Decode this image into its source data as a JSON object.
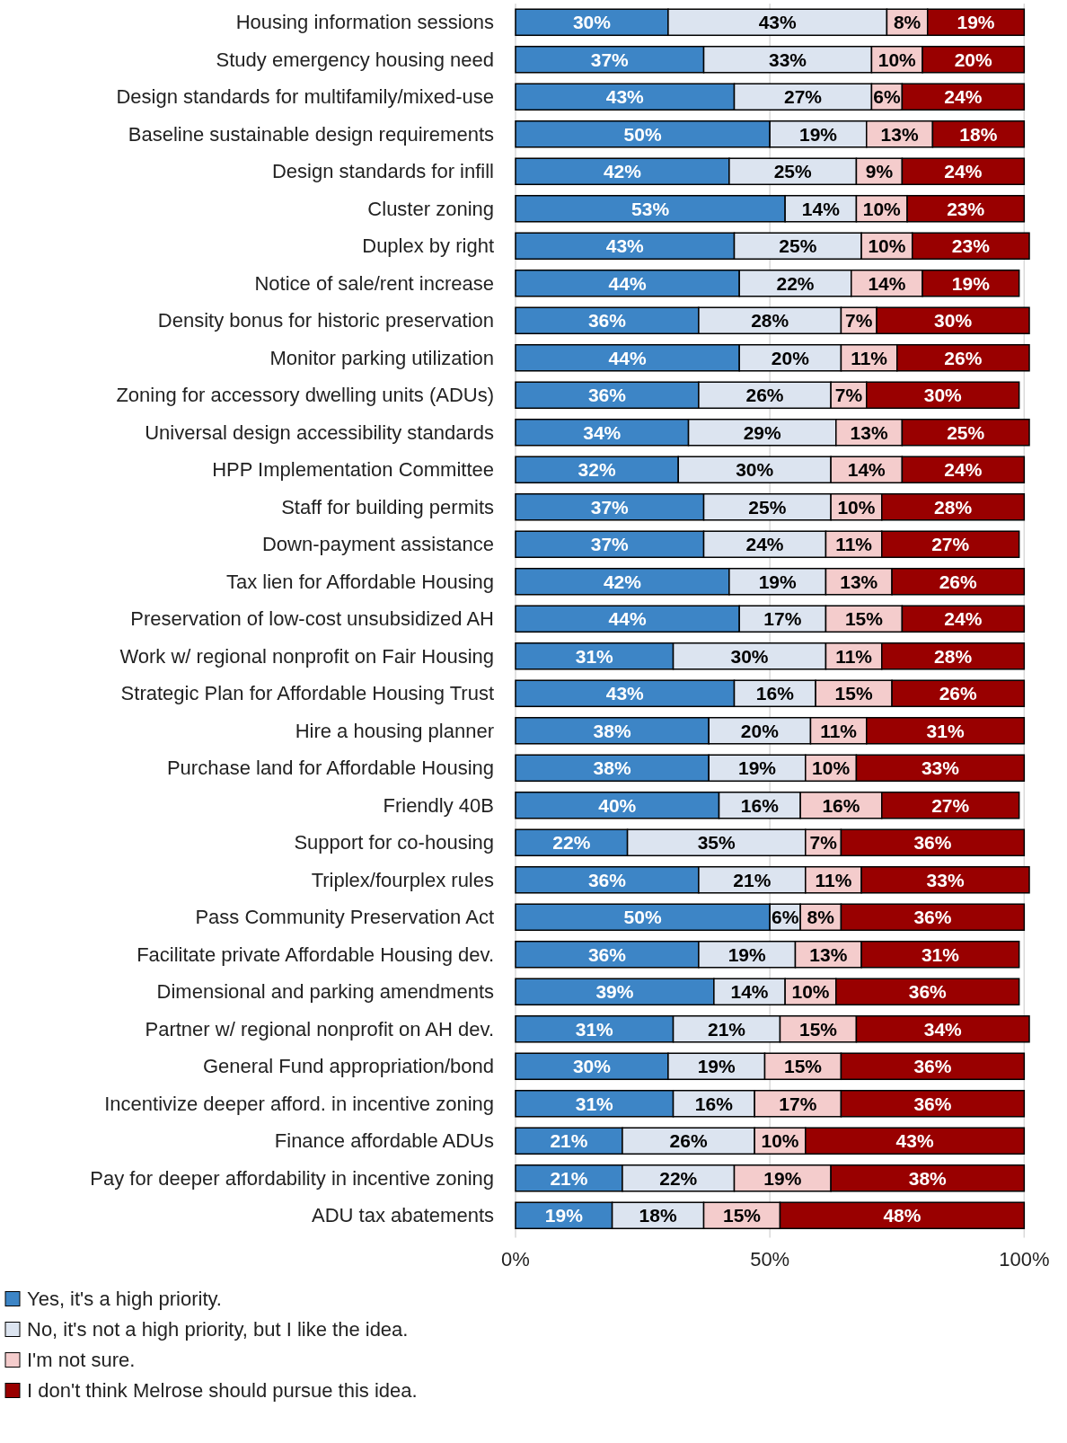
{
  "chart_data": {
    "type": "bar",
    "orientation": "horizontal",
    "stacked": true,
    "grid": "x",
    "legend": "bottom",
    "categories": [
      "Housing information sessions",
      "Study emergency housing need",
      "Design standards for multifamily/mixed-use",
      "Baseline sustainable design requirements",
      "Design standards for infill",
      "Cluster zoning",
      "Duplex by right",
      "Notice of sale/rent increase",
      "Density bonus for historic preservation",
      "Monitor parking utilization",
      "Zoning for accessory dwelling units (ADUs)",
      "Universal design accessibility standards",
      "HPP Implementation Committee",
      "Staff for building permits",
      "Down-payment assistance",
      "Tax lien for Affordable Housing",
      "Preservation of low-cost unsubsidized AH",
      "Work w/ regional nonprofit on Fair Housing",
      "Strategic Plan for Affordable Housing Trust",
      "Hire a housing planner",
      "Purchase land for Affordable Housing",
      "Friendly 40B",
      "Support for co-housing",
      "Triplex/fourplex rules",
      "Pass Community Preservation Act",
      "Facilitate private Affordable Housing dev.",
      "Dimensional and parking amendments",
      "Partner w/ regional nonprofit on AH dev.",
      "General Fund appropriation/bond",
      "Incentivize deeper afford. in incentive zoning",
      "Finance affordable ADUs",
      "Pay for deeper affordability in incentive zoning",
      "ADU tax abatements"
    ],
    "xlim": [
      0,
      101
    ],
    "xticks": [
      {
        "value": 0,
        "label": "0%"
      },
      {
        "value": 50,
        "label": "50%"
      },
      {
        "value": 100,
        "label": "100%"
      }
    ],
    "series": [
      {
        "name": "Yes, it's a high priority.",
        "color": "#3d85c6",
        "values": [
          30,
          37,
          43,
          50,
          42,
          53,
          43,
          44,
          36,
          44,
          36,
          34,
          32,
          37,
          37,
          42,
          44,
          31,
          43,
          38,
          38,
          40,
          22,
          36,
          50,
          36,
          39,
          31,
          30,
          31,
          21,
          21,
          19
        ],
        "value_labels": [
          "30%",
          "37%",
          "43%",
          "50%",
          "42%",
          "53%",
          "43%",
          "44%",
          "36%",
          "44%",
          "36%",
          "34%",
          "32%",
          "37%",
          "37%",
          "42%",
          "44%",
          "31%",
          "43%",
          "38%",
          "38%",
          "40%",
          "22%",
          "36%",
          "50%",
          "36%",
          "39%",
          "31%",
          "30%",
          "31%",
          "21%",
          "21%",
          "19%"
        ]
      },
      {
        "name": "No, it's not a high priority, but I like the idea.",
        "color": "#dce4f0",
        "values": [
          43,
          33,
          27,
          19,
          25,
          14,
          25,
          22,
          28,
          20,
          26,
          29,
          30,
          25,
          24,
          19,
          17,
          30,
          16,
          20,
          19,
          16,
          35,
          21,
          6,
          19,
          14,
          21,
          19,
          16,
          26,
          22,
          18
        ],
        "value_labels": [
          "43%",
          "33%",
          "27%",
          "19%",
          "25%",
          "14%",
          "25%",
          "22%",
          "28%",
          "20%",
          "26%",
          "29%",
          "30%",
          "25%",
          "24%",
          "19%",
          "17%",
          "30%",
          "16%",
          "20%",
          "19%",
          "16%",
          "35%",
          "21%",
          "6%",
          "19%",
          "14%",
          "21%",
          "19%",
          "16%",
          "26%",
          "22%",
          "18%"
        ]
      },
      {
        "name": "I'm not sure.",
        "color": "#f4cccc",
        "values": [
          8,
          10,
          6,
          13,
          9,
          10,
          10,
          14,
          7,
          11,
          7,
          13,
          14,
          10,
          11,
          13,
          15,
          11,
          15,
          11,
          10,
          16,
          7,
          11,
          8,
          13,
          10,
          15,
          15,
          17,
          10,
          19,
          15
        ],
        "value_labels": [
          "8%",
          "10%",
          "6%",
          "13%",
          "9%",
          "10%",
          "10%",
          "14%",
          "7%",
          "11%",
          "7%",
          "13%",
          "14%",
          "10%",
          "11%",
          "13%",
          "15%",
          "11%",
          "15%",
          "11%",
          "10%",
          "16%",
          "7%",
          "11%",
          "8%",
          "13%",
          "10%",
          "15%",
          "15%",
          "17%",
          "10%",
          "19%",
          "15%"
        ]
      },
      {
        "name": "I don't think Melrose should pursue this idea.",
        "color": "#990000",
        "values": [
          19,
          20,
          24,
          18,
          24,
          23,
          23,
          19,
          30,
          26,
          30,
          25,
          24,
          28,
          27,
          26,
          24,
          28,
          26,
          31,
          33,
          27,
          36,
          33,
          36,
          31,
          36,
          34,
          36,
          36,
          43,
          38,
          48
        ],
        "value_labels": [
          "19%",
          "20%",
          "24%",
          "18%",
          "24%",
          "23%",
          "23%",
          "19%",
          "30%",
          "26%",
          "30%",
          "25%",
          "24%",
          "28%",
          "27%",
          "26%",
          "24%",
          "28%",
          "26%",
          "31%",
          "33%",
          "27%",
          "36%",
          "33%",
          "36%",
          "31%",
          "36%",
          "34%",
          "36%",
          "36%",
          "43%",
          "38%",
          "48%"
        ]
      }
    ]
  }
}
